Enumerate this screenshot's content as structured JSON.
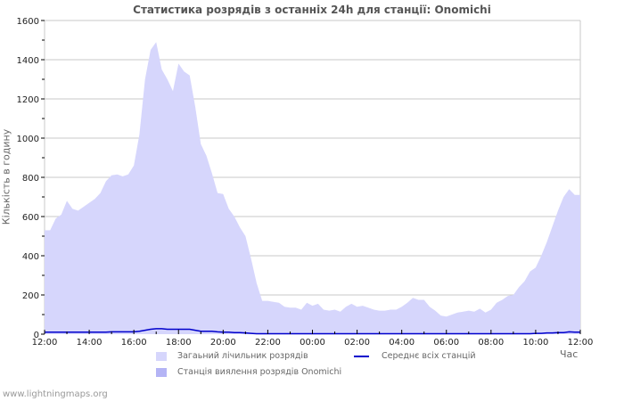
{
  "title": "Статистика розрядів з останніх 24h для станції: Onomichi",
  "y_axis_label": "Кількість в годину",
  "x_axis_unit": "Час",
  "legend": {
    "total": "Загаьний лічильник розрядів",
    "station": "Станція виялення розрядів Onomichi",
    "average": "Середнє всіх станцій"
  },
  "footer": "www.lightningmaps.org",
  "colors": {
    "total_fill": "#d6d6fc",
    "station_fill": "#b4b4f5",
    "average_line": "#0000cc",
    "grid": "#c8c8c8"
  },
  "chart_data": {
    "type": "area",
    "title": "Статистика розрядів з останніх 24h для станції: Onomichi",
    "xlabel": "Час",
    "ylabel": "Кількість в годину",
    "ylim": [
      0,
      1600
    ],
    "yticks": [
      0,
      200,
      400,
      600,
      800,
      1000,
      1200,
      1400,
      1600
    ],
    "xticks": [
      "12:00",
      "14:00",
      "16:00",
      "18:00",
      "20:00",
      "22:00",
      "00:00",
      "02:00",
      "04:00",
      "06:00",
      "08:00",
      "10:00",
      "12:00"
    ],
    "grid": true,
    "legend_position": "bottom",
    "x_hours": [
      0,
      0.25,
      0.5,
      0.75,
      1,
      1.25,
      1.5,
      1.75,
      2,
      2.25,
      2.5,
      2.75,
      3,
      3.25,
      3.5,
      3.75,
      4,
      4.25,
      4.5,
      4.75,
      5,
      5.25,
      5.5,
      5.75,
      6,
      6.25,
      6.5,
      6.75,
      7,
      7.25,
      7.5,
      7.75,
      8,
      8.25,
      8.5,
      8.75,
      9,
      9.25,
      9.5,
      9.75,
      10,
      10.25,
      10.5,
      10.75,
      11,
      11.25,
      11.5,
      11.75,
      12,
      12.25,
      12.5,
      12.75,
      13,
      13.25,
      13.5,
      13.75,
      14,
      14.25,
      14.5,
      14.75,
      15,
      15.25,
      15.5,
      15.75,
      16,
      16.25,
      16.5,
      16.75,
      17,
      17.25,
      17.5,
      17.75,
      18,
      18.25,
      18.5,
      18.75,
      19,
      19.25,
      19.5,
      19.75,
      20,
      20.25,
      20.5,
      20.75,
      21,
      21.25,
      21.5,
      21.75,
      22,
      22.25,
      22.5,
      22.75,
      23,
      23.25,
      23.5,
      23.75,
      24
    ],
    "series": [
      {
        "name": "Загаьний лічильник розрядів",
        "values": [
          530,
          530,
          590,
          610,
          680,
          640,
          630,
          650,
          670,
          690,
          720,
          780,
          810,
          815,
          805,
          815,
          860,
          1020,
          1300,
          1450,
          1490,
          1350,
          1300,
          1240,
          1380,
          1340,
          1320,
          1160,
          970,
          910,
          820,
          720,
          715,
          640,
          600,
          545,
          500,
          385,
          260,
          170,
          170,
          165,
          160,
          140,
          135,
          135,
          125,
          160,
          145,
          155,
          125,
          120,
          125,
          115,
          140,
          155,
          140,
          145,
          135,
          125,
          120,
          120,
          125,
          125,
          140,
          160,
          185,
          175,
          175,
          140,
          120,
          95,
          90,
          100,
          110,
          115,
          120,
          115,
          130,
          110,
          125,
          160,
          175,
          195,
          200,
          240,
          270,
          320,
          340,
          400,
          470,
          550,
          630,
          700,
          740,
          710,
          710
        ],
        "fill": "#d6d6fc"
      },
      {
        "name": "Станція виялення розрядів Onomichi",
        "values": [
          0,
          0,
          0,
          0,
          0,
          0,
          0,
          0,
          0,
          0,
          0,
          0,
          0,
          0,
          0,
          0,
          0,
          0,
          0,
          0,
          0,
          0,
          0,
          0,
          0,
          0,
          0,
          0,
          0,
          0,
          0,
          0,
          0,
          0,
          0,
          0,
          0,
          0,
          0,
          0,
          0,
          0,
          0,
          0,
          0,
          0,
          0,
          0,
          0,
          0,
          0,
          0,
          0,
          0,
          0,
          0,
          0,
          0,
          0,
          0,
          0,
          0,
          0,
          0,
          0,
          0,
          0,
          0,
          0,
          0,
          0,
          0,
          0,
          0,
          0,
          0,
          0,
          0,
          0,
          0,
          0,
          0,
          0,
          0,
          0,
          0,
          0,
          0,
          0,
          0,
          0,
          0,
          0,
          0,
          0,
          0,
          0
        ],
        "fill": "#b4b4f5"
      },
      {
        "name": "Середнє всіх станцій",
        "values": [
          10,
          10,
          10,
          10,
          10,
          10,
          10,
          10,
          10,
          10,
          10,
          10,
          12,
          12,
          12,
          12,
          12,
          15,
          20,
          25,
          28,
          28,
          25,
          25,
          25,
          25,
          25,
          20,
          15,
          15,
          15,
          12,
          10,
          10,
          8,
          8,
          6,
          4,
          2,
          2,
          2,
          2,
          2,
          2,
          2,
          2,
          2,
          2,
          2,
          2,
          2,
          2,
          2,
          2,
          2,
          2,
          2,
          2,
          2,
          2,
          2,
          2,
          2,
          2,
          2,
          2,
          2,
          2,
          2,
          2,
          2,
          2,
          2,
          2,
          2,
          2,
          2,
          2,
          2,
          2,
          2,
          2,
          2,
          2,
          2,
          2,
          2,
          2,
          4,
          4,
          6,
          6,
          8,
          8,
          12,
          10,
          10
        ],
        "line": "#0000cc"
      }
    ]
  }
}
